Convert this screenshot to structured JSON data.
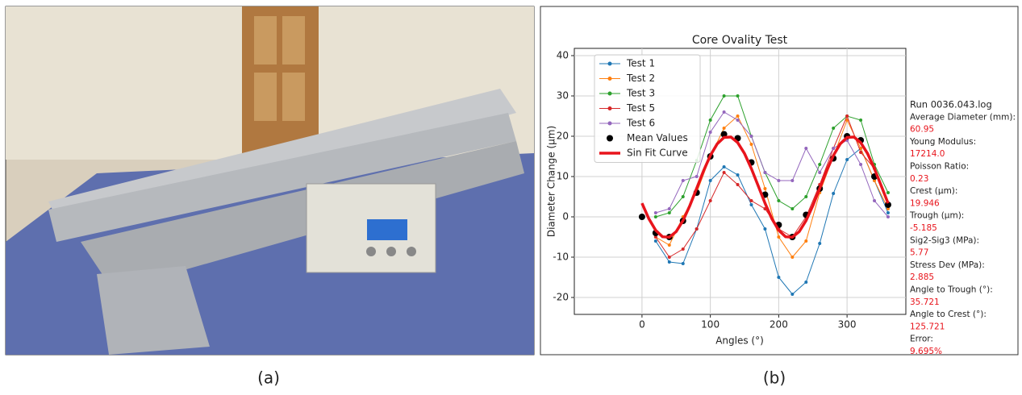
{
  "figure": {
    "captions": [
      "(a)",
      "(b)"
    ]
  },
  "chart_data": {
    "type": "line",
    "title": "Core Ovality Test",
    "x_label": "Angles (°)",
    "y_label": "Diameter Change (µm)",
    "xlim": [
      -99,
      386
    ],
    "ylim": [
      -24.2,
      41.8
    ],
    "xticks": [
      0,
      100,
      200,
      300
    ],
    "yticks": [
      -20,
      -10,
      0,
      10,
      20,
      30,
      40
    ],
    "grid": true,
    "legend": "upper left",
    "series": [
      {
        "name": "Test 1",
        "color": "#1f77b4",
        "style": "line-marker",
        "x": [
          20,
          40,
          60,
          80,
          100,
          120,
          140,
          160,
          180,
          200,
          220,
          240,
          260,
          280,
          300,
          320,
          340,
          360
        ],
        "values": [
          -6,
          -11.2,
          -11.6,
          -3,
          9,
          12.4,
          10.4,
          3,
          -3,
          -15,
          -19.2,
          -16.2,
          -6.6,
          5.8,
          14.2,
          17,
          9,
          1
        ]
      },
      {
        "name": "Test 2",
        "color": "#ff7f0e",
        "style": "line-marker",
        "x": [
          20,
          40,
          60,
          80,
          100,
          120,
          140,
          160,
          180,
          200,
          220,
          240,
          260,
          280,
          300,
          320,
          340,
          360
        ],
        "values": [
          -5,
          -7,
          0,
          6,
          15,
          22,
          25,
          18,
          7,
          -5,
          -10,
          -6,
          6,
          15,
          24,
          17,
          9,
          2
        ]
      },
      {
        "name": "Test 3",
        "color": "#2ca02c",
        "style": "line-marker",
        "x": [
          20,
          40,
          60,
          80,
          100,
          120,
          140,
          160,
          180,
          200,
          220,
          240,
          260,
          280,
          300,
          320,
          340,
          360
        ],
        "values": [
          0,
          1,
          5,
          14,
          24,
          30,
          30,
          20,
          11,
          4,
          2,
          5,
          13,
          22,
          25,
          24,
          13,
          6
        ]
      },
      {
        "name": "Test 5",
        "color": "#d62728",
        "style": "line-marker",
        "x": [
          20,
          40,
          60,
          80,
          100,
          120,
          140,
          160,
          180,
          200,
          220,
          240,
          260,
          280,
          300,
          320,
          340,
          360
        ],
        "values": [
          -5,
          -10,
          -8,
          -3,
          4,
          11,
          8,
          4,
          2,
          -3,
          -5,
          0,
          8,
          17,
          25,
          16,
          12,
          3
        ]
      },
      {
        "name": "Test 6",
        "color": "#9467bd",
        "style": "line-marker",
        "x": [
          20,
          40,
          60,
          80,
          100,
          120,
          140,
          160,
          180,
          200,
          220,
          240,
          260,
          280,
          300,
          320,
          340,
          360
        ],
        "values": [
          1,
          2,
          9,
          10,
          21,
          26,
          24,
          20,
          11,
          9,
          9,
          17,
          11,
          17,
          19,
          13,
          4,
          0
        ]
      },
      {
        "name": "Mean Values",
        "color": "#000000",
        "style": "scatter",
        "x": [
          0,
          20,
          40,
          60,
          80,
          100,
          120,
          140,
          160,
          180,
          200,
          220,
          240,
          260,
          280,
          300,
          320,
          340,
          360
        ],
        "values": [
          0,
          -4,
          -5,
          -1,
          6,
          15,
          20.5,
          19.5,
          13.5,
          5.5,
          -2,
          -5,
          0.5,
          7,
          14.5,
          20,
          19,
          10,
          3
        ]
      },
      {
        "name": "Sin Fit Curve",
        "color": "#e8141c",
        "style": "line",
        "x": [
          0,
          10,
          20,
          30,
          40,
          50,
          60,
          70,
          80,
          90,
          100,
          110,
          120,
          130,
          140,
          150,
          160,
          170,
          180,
          190,
          200,
          210,
          220,
          230,
          240,
          250,
          260,
          270,
          280,
          290,
          300,
          310,
          320,
          330,
          340,
          350,
          360
        ],
        "values": [
          3.38,
          -0.46,
          -3.34,
          -4.94,
          -5.05,
          -3.66,
          -0.94,
          2.79,
          7.06,
          11.38,
          15.22,
          18.1,
          19.7,
          19.81,
          18.42,
          15.7,
          11.97,
          7.7,
          3.38,
          -0.46,
          -3.34,
          -4.94,
          -5.05,
          -3.66,
          -0.94,
          2.79,
          7.06,
          11.38,
          15.22,
          18.1,
          19.7,
          19.81,
          18.42,
          15.7,
          11.97,
          7.7,
          3.38
        ]
      }
    ],
    "annotations": {
      "heading": "Run 0036.043.log",
      "color": "#e8141c",
      "items": [
        {
          "label": "Average Diameter (mm):",
          "value": "60.95"
        },
        {
          "label": "Young Modulus:",
          "value": "17214.0"
        },
        {
          "label": "Poisson Ratio:",
          "value": "0.23"
        },
        {
          "label": "Crest (µm):",
          "value": "19.946"
        },
        {
          "label": "Trough (µm):",
          "value": "-5.185"
        },
        {
          "label": "Sig2-Sig3 (MPa):",
          "value": "5.77"
        },
        {
          "label": "Stress Dev (MPa):",
          "value": "2.885"
        },
        {
          "label": "Angle to Trough (°):",
          "value": "35.721"
        },
        {
          "label": "Angle to Crest (°):",
          "value": "125.721"
        },
        {
          "label": "Error:",
          "value": "9.695%"
        }
      ]
    }
  }
}
